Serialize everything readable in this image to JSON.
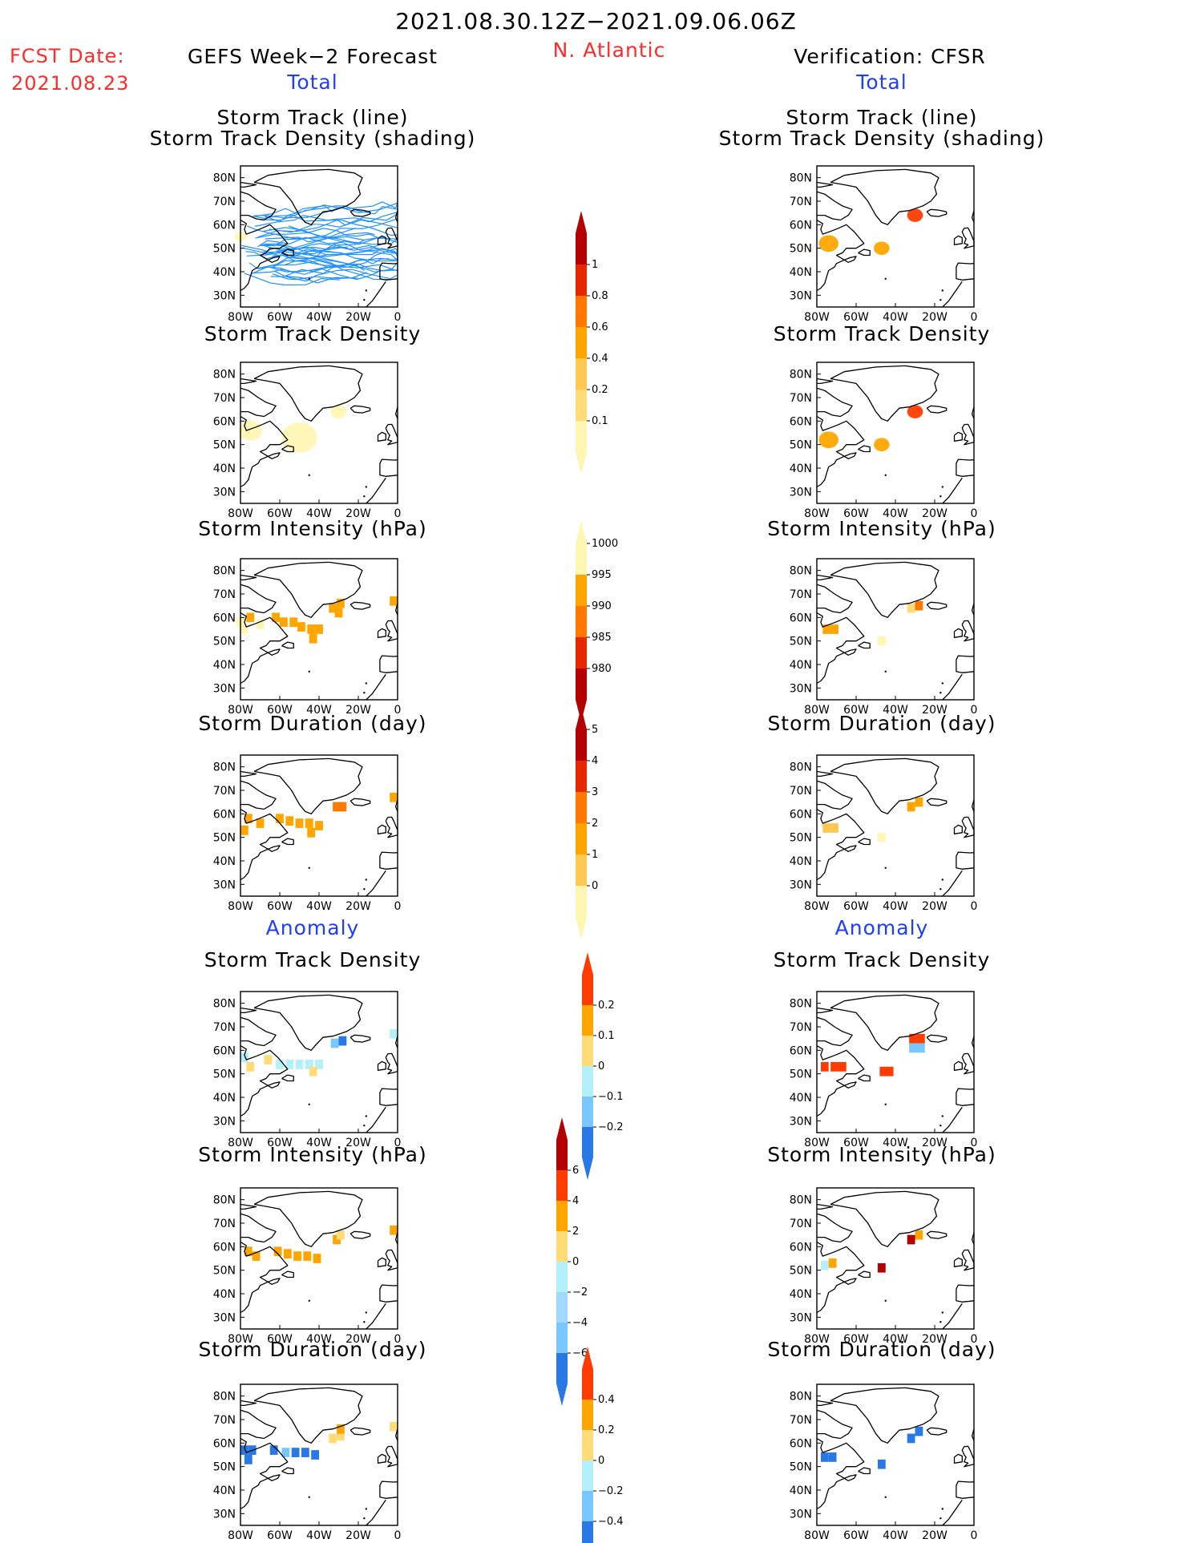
{
  "header": {
    "period": "2021.08.30.12Z−2021.09.06.06Z",
    "fcst_label": "FCST Date:",
    "fcst_date": "2021.08.23",
    "region": "N. Atlantic",
    "left_title": "GEFS Week−2 Forecast",
    "right_title": "Verification: CFSR",
    "total_label": "Total",
    "anomaly_label": "Anomaly"
  },
  "colors": {
    "track": "#1e90ff",
    "yellow_light": "#fff6b4",
    "yellow": "#ffdc78",
    "orange_light": "#ffc850",
    "orange": "#ffa500",
    "orange_dark": "#ff7800",
    "red": "#ff3c00",
    "dark_red": "#b40000",
    "cyan_light": "#b4f0fa",
    "blue_light": "#78c8ff",
    "blue": "#2878e6"
  },
  "axes": {
    "lat_labels": [
      "80N",
      "70N",
      "60N",
      "50N",
      "40N",
      "30N"
    ],
    "lon_labels": [
      "80W",
      "60W",
      "40W",
      "20W",
      "0"
    ]
  },
  "panels": {
    "left": [
      {
        "title": "Storm Track (line)",
        "subtitle": "Storm Track Density (shading)"
      },
      {
        "title": "Storm Track Density"
      },
      {
        "title": "Storm Intensity (hPa)"
      },
      {
        "title": "Storm Duration (day)"
      },
      {
        "title": "Storm Track Density"
      },
      {
        "title": "Storm Intensity (hPa)"
      },
      {
        "title": "Storm Duration (day)"
      }
    ],
    "right": [
      {
        "title": "Storm Track (line)",
        "subtitle": "Storm Track Density (shading)"
      },
      {
        "title": "Storm Track Density"
      },
      {
        "title": "Storm Intensity (hPa)"
      },
      {
        "title": "Storm Duration (day)"
      },
      {
        "title": "Storm Track Density"
      },
      {
        "title": "Storm Intensity (hPa)"
      },
      {
        "title": "Storm Duration (day)"
      }
    ]
  },
  "colorbars": {
    "density": {
      "labels": [
        "1",
        "0.8",
        "0.6",
        "0.4",
        "0.2",
        "0.1"
      ]
    },
    "intensity": {
      "labels": [
        "1000",
        "995",
        "990",
        "985",
        "980"
      ]
    },
    "duration": {
      "labels": [
        "5",
        "4",
        "3",
        "2",
        "1",
        "0"
      ]
    },
    "density_anom": {
      "labels": [
        "0.2",
        "0.1",
        "0",
        "−0.1",
        "−0.2"
      ]
    },
    "intensity_anom": {
      "labels": [
        "6",
        "4",
        "2",
        "0",
        "−2",
        "−4",
        "−6"
      ]
    },
    "duration_anom": {
      "labels": [
        "0.4",
        "0.2",
        "0",
        "−0.2",
        "−0.4"
      ]
    }
  },
  "chart_data": {
    "type": "heatmap",
    "region": "N. Atlantic",
    "lon_range": [
      -80,
      0
    ],
    "lat_range": [
      25,
      85
    ],
    "colorbars": {
      "density": [
        0.1,
        0.2,
        0.4,
        0.6,
        0.8,
        1
      ],
      "intensity": [
        980,
        985,
        990,
        995,
        1000
      ],
      "duration": [
        0,
        1,
        2,
        3,
        4,
        5
      ],
      "density_anom": [
        -0.2,
        -0.1,
        0,
        0.1,
        0.2
      ],
      "intensity_anom": [
        -6,
        -4,
        -2,
        0,
        2,
        4,
        6
      ],
      "duration_anom": [
        -0.4,
        -0.2,
        0,
        0.2,
        0.4
      ]
    },
    "blobs": {
      "gefs_density": [
        {
          "lon": -75,
          "lat": 56,
          "r": 6,
          "c": "#fff6b4"
        },
        {
          "lon": -50,
          "lat": 53,
          "r": 9,
          "c": "#fff6b4"
        },
        {
          "lon": -30,
          "lat": 64,
          "r": 4,
          "c": "#fff6b4"
        }
      ],
      "cfsr_density": [
        {
          "lon": -74,
          "lat": 52,
          "r": 5,
          "c": "#ffa500"
        },
        {
          "lon": -47,
          "lat": 50,
          "r": 4,
          "c": "#ffa500"
        },
        {
          "lon": -30,
          "lat": 64,
          "r": 4,
          "c": "#ff3c00"
        }
      ]
    },
    "cells": {
      "gefs_intensity": [
        {
          "lon": -75,
          "lat": 60,
          "c": "#ffa500"
        },
        {
          "lon": -80,
          "lat": 58,
          "c": "#fff6b4"
        },
        {
          "lon": -78,
          "lat": 55,
          "c": "#fff6b4"
        },
        {
          "lon": -70,
          "lat": 57,
          "c": "#fff6b4"
        },
        {
          "lon": -62,
          "lat": 60,
          "c": "#ffa500"
        },
        {
          "lon": -58,
          "lat": 58,
          "c": "#ffa500"
        },
        {
          "lon": -53,
          "lat": 58,
          "c": "#ffa500"
        },
        {
          "lon": -49,
          "lat": 56,
          "c": "#ffa500"
        },
        {
          "lon": -44,
          "lat": 55,
          "c": "#ffa500"
        },
        {
          "lon": -40,
          "lat": 55,
          "c": "#ffa500"
        },
        {
          "lon": -43,
          "lat": 51,
          "c": "#ffa500"
        },
        {
          "lon": -33,
          "lat": 64,
          "c": "#ffa500"
        },
        {
          "lon": -29,
          "lat": 66,
          "c": "#ffa500"
        },
        {
          "lon": -30,
          "lat": 62,
          "c": "#ffa500"
        },
        {
          "lon": -2,
          "lat": 67,
          "c": "#ffa500"
        }
      ],
      "cfsr_intensity": [
        {
          "lon": -75,
          "lat": 55,
          "c": "#ffa500"
        },
        {
          "lon": -71,
          "lat": 55,
          "c": "#ffa500"
        },
        {
          "lon": -47,
          "lat": 50,
          "c": "#fff6b4"
        },
        {
          "lon": -32,
          "lat": 64,
          "c": "#ffdc78"
        },
        {
          "lon": -28,
          "lat": 65,
          "c": "#ff7800"
        }
      ],
      "gefs_duration": [
        {
          "lon": -76,
          "lat": 58,
          "c": "#ffa500"
        },
        {
          "lon": -78,
          "lat": 53,
          "c": "#ffa500"
        },
        {
          "lon": -70,
          "lat": 56,
          "c": "#ffa500"
        },
        {
          "lon": -60,
          "lat": 58,
          "c": "#ffa500"
        },
        {
          "lon": -55,
          "lat": 57,
          "c": "#ffa500"
        },
        {
          "lon": -50,
          "lat": 56,
          "c": "#ffa500"
        },
        {
          "lon": -45,
          "lat": 56,
          "c": "#ffa500"
        },
        {
          "lon": -40,
          "lat": 55,
          "c": "#ffa500"
        },
        {
          "lon": -44,
          "lat": 52,
          "c": "#ffa500"
        },
        {
          "lon": -31,
          "lat": 63,
          "c": "#ff7800"
        },
        {
          "lon": -28,
          "lat": 63,
          "c": "#ff7800"
        },
        {
          "lon": -2,
          "lat": 67,
          "c": "#ffa500"
        }
      ],
      "cfsr_duration": [
        {
          "lon": -75,
          "lat": 54,
          "c": "#ffc850"
        },
        {
          "lon": -71,
          "lat": 54,
          "c": "#ffc850"
        },
        {
          "lon": -47,
          "lat": 50,
          "c": "#fff6b4"
        },
        {
          "lon": -32,
          "lat": 63,
          "c": "#ffa500"
        },
        {
          "lon": -28,
          "lat": 65,
          "c": "#ffa500"
        }
      ],
      "gefs_density_anom": [
        {
          "lon": -78,
          "lat": 57,
          "c": "#b4f0fa"
        },
        {
          "lon": -75,
          "lat": 53,
          "c": "#ffdc78"
        },
        {
          "lon": -66,
          "lat": 56,
          "c": "#ffdc78"
        },
        {
          "lon": -60,
          "lat": 54,
          "c": "#b4f0fa"
        },
        {
          "lon": -55,
          "lat": 54,
          "c": "#b4f0fa"
        },
        {
          "lon": -50,
          "lat": 54,
          "c": "#b4f0fa"
        },
        {
          "lon": -45,
          "lat": 54,
          "c": "#b4f0fa"
        },
        {
          "lon": -40,
          "lat": 54,
          "c": "#b4f0fa"
        },
        {
          "lon": -43,
          "lat": 51,
          "c": "#ffdc78"
        },
        {
          "lon": -32,
          "lat": 63,
          "c": "#78c8ff"
        },
        {
          "lon": -28,
          "lat": 64,
          "c": "#2878e6"
        },
        {
          "lon": -2,
          "lat": 67,
          "c": "#b4f0fa"
        }
      ],
      "cfsr_density_anom": [
        {
          "lon": -76,
          "lat": 53,
          "c": "#ff3c00"
        },
        {
          "lon": -71,
          "lat": 53,
          "c": "#ff3c00"
        },
        {
          "lon": -67,
          "lat": 53,
          "c": "#ff3c00"
        },
        {
          "lon": -46,
          "lat": 51,
          "c": "#ff3c00"
        },
        {
          "lon": -43,
          "lat": 51,
          "c": "#ff3c00"
        },
        {
          "lon": -31,
          "lat": 65,
          "c": "#ff3c00"
        },
        {
          "lon": -27,
          "lat": 65,
          "c": "#ff3c00"
        },
        {
          "lon": -31,
          "lat": 61,
          "c": "#78c8ff"
        },
        {
          "lon": -27,
          "lat": 61,
          "c": "#78c8ff"
        }
      ],
      "gefs_intensity_anom": [
        {
          "lon": -76,
          "lat": 58,
          "c": "#ffa500"
        },
        {
          "lon": -72,
          "lat": 56,
          "c": "#ffa500"
        },
        {
          "lon": -61,
          "lat": 58,
          "c": "#ffa500"
        },
        {
          "lon": -56,
          "lat": 57,
          "c": "#ffa500"
        },
        {
          "lon": -51,
          "lat": 56,
          "c": "#ffa500"
        },
        {
          "lon": -46,
          "lat": 56,
          "c": "#ffa500"
        },
        {
          "lon": -41,
          "lat": 55,
          "c": "#ffa500"
        },
        {
          "lon": -31,
          "lat": 63,
          "c": "#ffa500"
        },
        {
          "lon": -29,
          "lat": 65,
          "c": "#ffdc78"
        },
        {
          "lon": -2,
          "lat": 67,
          "c": "#ffa500"
        }
      ],
      "cfsr_intensity_anom": [
        {
          "lon": -76,
          "lat": 52,
          "c": "#b4f0fa"
        },
        {
          "lon": -72,
          "lat": 53,
          "c": "#ffa500"
        },
        {
          "lon": -47,
          "lat": 51,
          "c": "#b40000"
        },
        {
          "lon": -32,
          "lat": 63,
          "c": "#b40000"
        },
        {
          "lon": -28,
          "lat": 65,
          "c": "#ffa500"
        }
      ],
      "gefs_duration_anom": [
        {
          "lon": -78,
          "lat": 57,
          "c": "#2878e6"
        },
        {
          "lon": -74,
          "lat": 57,
          "c": "#2878e6"
        },
        {
          "lon": -76,
          "lat": 53,
          "c": "#2878e6"
        },
        {
          "lon": -63,
          "lat": 57,
          "c": "#2878e6"
        },
        {
          "lon": -57,
          "lat": 56,
          "c": "#78c8ff"
        },
        {
          "lon": -52,
          "lat": 56,
          "c": "#2878e6"
        },
        {
          "lon": -47,
          "lat": 56,
          "c": "#2878e6"
        },
        {
          "lon": -42,
          "lat": 55,
          "c": "#2878e6"
        },
        {
          "lon": -33,
          "lat": 62,
          "c": "#ffdc78"
        },
        {
          "lon": -29,
          "lat": 63,
          "c": "#ffdc78"
        },
        {
          "lon": -29,
          "lat": 66,
          "c": "#ffa500"
        },
        {
          "lon": -2,
          "lat": 67,
          "c": "#ffdc78"
        }
      ],
      "cfsr_duration_anom": [
        {
          "lon": -76,
          "lat": 54,
          "c": "#2878e6"
        },
        {
          "lon": -72,
          "lat": 54,
          "c": "#2878e6"
        },
        {
          "lon": -47,
          "lat": 51,
          "c": "#2878e6"
        },
        {
          "lon": -32,
          "lat": 62,
          "c": "#2878e6"
        },
        {
          "lon": -28,
          "lat": 65,
          "c": "#2878e6"
        }
      ]
    }
  }
}
